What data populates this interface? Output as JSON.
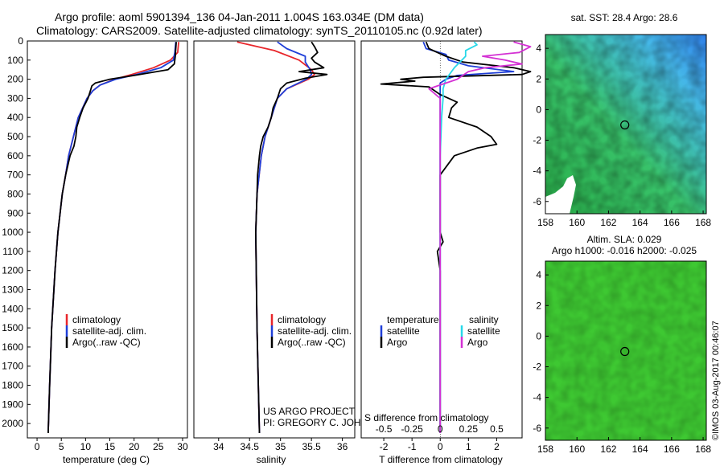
{
  "title": {
    "line1": "Argo profile: aoml 5901394_136 04-Jan-2011 1.004S 163.034E (DM data)",
    "line2": "Climatology: CARS2009. Satellite-adjusted climatology: synTS_20110105.nc (0.92d later)"
  },
  "colors": {
    "climatology": "#e8262b",
    "satellite": "#1f3fd8",
    "argo": "#000000",
    "satellite_salinity": "#27d8e8",
    "argo_salinity": "#d431d4",
    "map_sst_low": "#2ab04a",
    "map_sst_high": "#2f8df0",
    "map_sla": "#3ec832"
  },
  "depth_axis": {
    "range": [
      0,
      2075
    ],
    "ticks": [
      "0",
      "100",
      "200",
      "300",
      "400",
      "500",
      "600",
      "700",
      "800",
      "900",
      "1000",
      "1100",
      "1200",
      "1300",
      "1400",
      "1500",
      "1600",
      "1700",
      "1800",
      "1900",
      "2000"
    ]
  },
  "credits": {
    "line1": "US ARGO PROJECT",
    "line2": "PI: GREGORY C. JOHNSON",
    "imos": "©IMOS 03-Aug-2017 00:46:07"
  },
  "chart_data": [
    {
      "type": "line",
      "id": "temperature",
      "xlabel": "temperature (deg C)",
      "ylabel": "depth (dbar)",
      "xlim": [
        -2,
        31
      ],
      "ylim": [
        2075,
        0
      ],
      "x_ticks": [
        "0",
        "5",
        "10",
        "15",
        "20",
        "25",
        "30"
      ],
      "legend": [
        "climatology",
        "satellite-adj. clim.",
        "Argo(..raw -QC)"
      ],
      "series": [
        {
          "name": "climatology",
          "color_key": "climatology",
          "depth": [
            5,
            60,
            100,
            140,
            175,
            200,
            230,
            260,
            300,
            400,
            500,
            600,
            700,
            800,
            1000,
            1200,
            1500,
            1800,
            2050
          ],
          "values": [
            29.2,
            29.0,
            27.5,
            24.0,
            19.5,
            16.0,
            13.0,
            11.5,
            10.3,
            8.5,
            7.5,
            6.5,
            5.9,
            5.2,
            4.3,
            3.7,
            3.0,
            2.6,
            2.3
          ]
        },
        {
          "name": "satellite-adj. clim.",
          "color_key": "satellite",
          "depth": [
            5,
            60,
            100,
            140,
            175,
            200,
            230,
            260,
            300,
            400,
            500,
            600,
            700,
            800,
            1000,
            1200,
            1500,
            1800,
            2050
          ],
          "values": [
            28.6,
            28.4,
            28.1,
            25.5,
            20.5,
            16.2,
            13.0,
            11.5,
            10.3,
            8.5,
            7.5,
            6.5,
            5.9,
            5.2,
            4.3,
            3.7,
            3.0,
            2.6,
            2.3
          ]
        },
        {
          "name": "Argo(..raw -QC)",
          "color_key": "argo",
          "depth": [
            5,
            40,
            80,
            120,
            150,
            180,
            200,
            220,
            235,
            260,
            300,
            350,
            400,
            450,
            500,
            550,
            600,
            700,
            800,
            1000,
            1200,
            1500,
            1800,
            2050
          ],
          "values": [
            28.7,
            28.6,
            28.5,
            28.3,
            27.0,
            20.0,
            15.0,
            12.0,
            11.3,
            11.0,
            10.5,
            9.5,
            8.8,
            8.2,
            8.0,
            7.6,
            6.8,
            5.9,
            5.2,
            4.3,
            3.7,
            3.0,
            2.6,
            2.3
          ]
        }
      ]
    },
    {
      "type": "line",
      "id": "salinity",
      "xlabel": "salinity",
      "xlim": [
        33.6,
        36.2
      ],
      "ylim": [
        2075,
        0
      ],
      "x_ticks": [
        "34",
        "34.5",
        "35",
        "35.5",
        "36"
      ],
      "legend": [
        "climatology",
        "satellite-adj. clim.",
        "Argo(..raw -QC)"
      ],
      "series": [
        {
          "name": "climatology",
          "color_key": "climatology",
          "depth": [
            5,
            50,
            100,
            150,
            175,
            200,
            250,
            300,
            400,
            500,
            600,
            800,
            1000,
            1500,
            2050
          ],
          "values": [
            34.3,
            34.9,
            35.3,
            35.5,
            35.55,
            35.45,
            35.1,
            34.95,
            34.85,
            34.75,
            34.69,
            34.62,
            34.6,
            34.62,
            34.66
          ]
        },
        {
          "name": "satellite-adj. clim.",
          "color_key": "satellite",
          "depth": [
            5,
            40,
            80,
            110,
            150,
            175,
            200,
            250,
            300,
            400,
            500,
            600,
            800,
            1000,
            1500,
            2050
          ],
          "values": [
            34.95,
            35.1,
            35.4,
            35.4,
            35.48,
            35.5,
            35.42,
            35.1,
            34.95,
            34.85,
            34.75,
            34.69,
            34.62,
            34.6,
            34.62,
            34.66
          ]
        },
        {
          "name": "Argo(..raw -QC)",
          "color_key": "argo",
          "depth": [
            5,
            30,
            60,
            90,
            110,
            140,
            160,
            175,
            195,
            220,
            250,
            300,
            350,
            400,
            450,
            500,
            550,
            600,
            700,
            800,
            1000,
            1500,
            2050
          ],
          "values": [
            35.5,
            35.55,
            35.6,
            35.5,
            35.55,
            35.7,
            35.3,
            35.75,
            35.4,
            35.1,
            35.0,
            34.95,
            34.88,
            34.85,
            34.8,
            34.72,
            34.68,
            34.66,
            34.63,
            34.62,
            34.6,
            34.62,
            34.66
          ]
        }
      ]
    },
    {
      "type": "line",
      "id": "differences",
      "xlabel": "T difference from climatology",
      "xlabel_top": "S difference from climatology",
      "xlim": [
        -2.8,
        2.9
      ],
      "ylim": [
        2075,
        0
      ],
      "x_ticks": [
        "-2",
        "-1",
        "0",
        "1",
        "2"
      ],
      "x_ticks_s": [
        "-0.5",
        "-0.25",
        "0",
        "0.25",
        "0.5"
      ],
      "legend_temperature_title": "temperature",
      "legend_salinity_title": "salinity",
      "legend": [
        "satellite",
        "Argo",
        "satellite",
        "Argo"
      ],
      "series": [
        {
          "name": "temperature satellite",
          "color_key": "satellite",
          "depth": [
            5,
            40,
            70,
            100,
            130,
            160,
            180,
            200,
            220,
            250,
            300,
            400,
            600,
            1000,
            2050
          ],
          "values": [
            -0.6,
            -0.5,
            0.2,
            0.3,
            1.0,
            2.6,
            0.6,
            0.2,
            0.0,
            0.0,
            0.0,
            0.0,
            0.0,
            0.0,
            0.0
          ]
        },
        {
          "name": "temperature Argo",
          "color_key": "argo",
          "depth": [
            5,
            40,
            60,
            80,
            110,
            140,
            160,
            175,
            190,
            200,
            210,
            225,
            240,
            260,
            280,
            300,
            320,
            350,
            400,
            450,
            500,
            540,
            560,
            600,
            700,
            800,
            1000,
            1050,
            1100,
            1200,
            1500,
            2050
          ],
          "values": [
            -0.5,
            -0.4,
            -0.1,
            0.2,
            0.8,
            2.6,
            3.2,
            2.9,
            -0.6,
            -1.4,
            -0.9,
            -2.1,
            -0.4,
            -0.2,
            0.0,
            0.3,
            0.6,
            0.4,
            0.3,
            1.3,
            1.8,
            2.0,
            1.3,
            0.5,
            0.0,
            0.0,
            0.0,
            0.1,
            -0.1,
            0.0,
            0.0,
            0.0
          ]
        },
        {
          "name": "salinity satellite",
          "color_key": "satellite_salinity",
          "depth": [
            5,
            20,
            50,
            80,
            110,
            140,
            160,
            200,
            250,
            300,
            400,
            600,
            1000,
            2050
          ],
          "values": [
            1.2,
            1.3,
            0.9,
            0.9,
            0.7,
            0.5,
            0.4,
            0.2,
            0.1,
            0.1,
            0.05,
            0.0,
            0.0,
            0.0
          ]
        },
        {
          "name": "salinity Argo",
          "color_key": "argo_salinity",
          "depth": [
            5,
            30,
            60,
            80,
            100,
            120,
            140,
            160,
            180,
            200,
            220,
            250,
            300,
            400,
            600,
            1000,
            2050
          ],
          "values": [
            2.6,
            3.2,
            2.8,
            1.5,
            2.3,
            2.9,
            1.6,
            1.0,
            0.8,
            0.6,
            0.2,
            -0.4,
            0.0,
            0.0,
            0.0,
            0.0,
            0.0
          ]
        }
      ]
    },
    {
      "type": "heatmap",
      "id": "sst-map",
      "title": "sat. SST: 28.4 Argo: 28.6",
      "x_ticks": [
        "158",
        "160",
        "162",
        "164",
        "166",
        "168"
      ],
      "y_ticks": [
        "4",
        "2",
        "0",
        "-2",
        "-4",
        "-6"
      ],
      "xlim": [
        158,
        168.2
      ],
      "ylim": [
        -6.8,
        4.9
      ],
      "argo_position": [
        163.034,
        -1.004
      ]
    },
    {
      "type": "heatmap",
      "id": "sla-map",
      "title": "Altim. SLA: 0.029",
      "subtitle": "Argo h1000: -0.016 h2000: -0.025",
      "x_ticks": [
        "158",
        "160",
        "162",
        "164",
        "166",
        "168"
      ],
      "y_ticks": [
        "4",
        "2",
        "0",
        "-2",
        "-4",
        "-6"
      ],
      "xlim": [
        158,
        168.2
      ],
      "ylim": [
        -6.8,
        4.9
      ],
      "argo_position": [
        163.034,
        -1.004
      ]
    }
  ]
}
